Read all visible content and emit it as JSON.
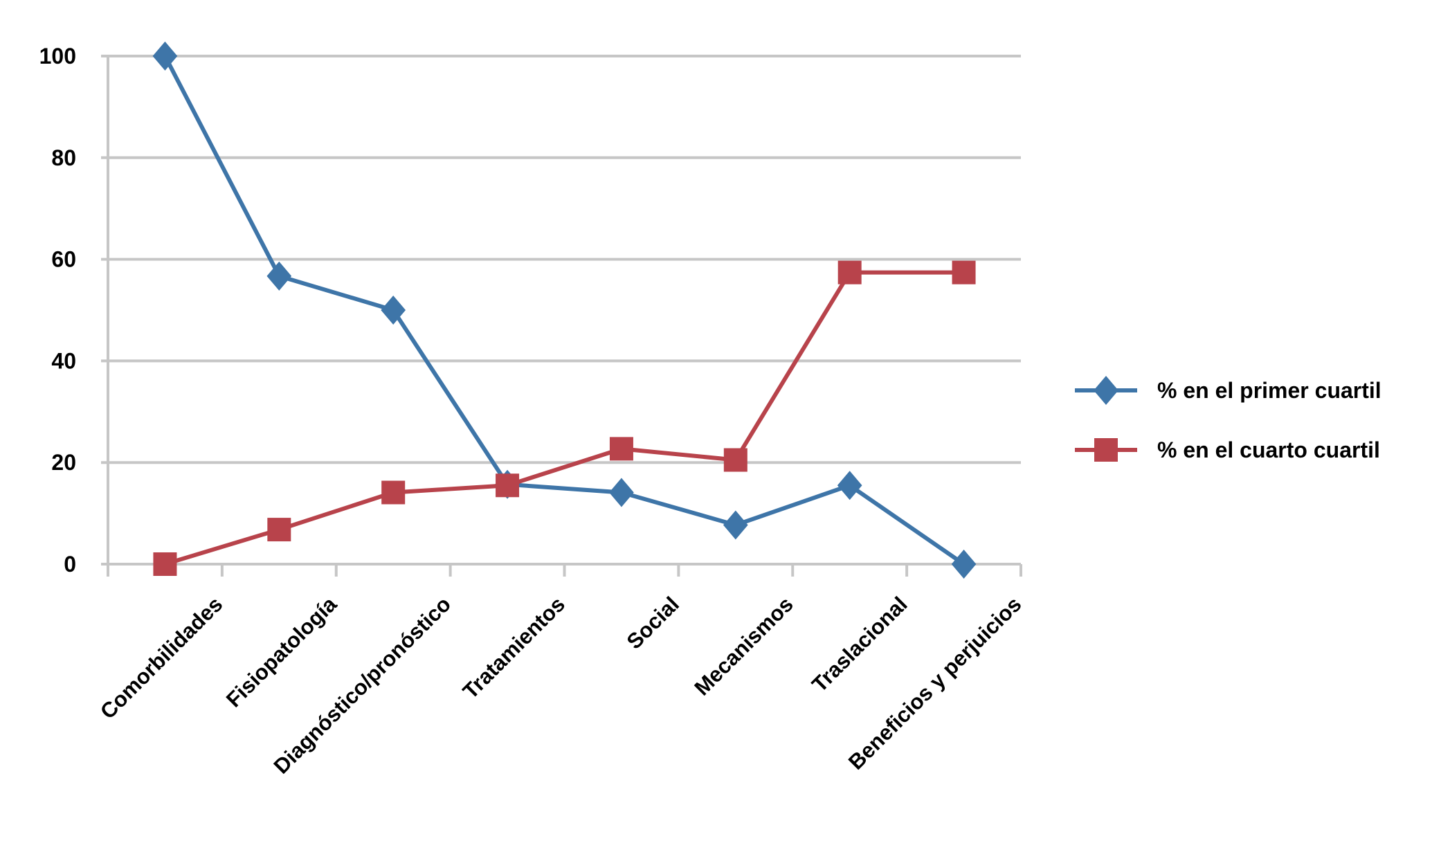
{
  "chart_data": {
    "type": "line",
    "title": "",
    "xlabel": "",
    "ylabel": "",
    "categories": [
      "Comorbilidades",
      "Fisiopatología",
      "Diagnóstico/pronóstico",
      "Tratamientos",
      "Social",
      "Mecanismos",
      "Traslacional",
      "Beneficios y perjuicios"
    ],
    "ylim": [
      0,
      100
    ],
    "yticks": [
      "0",
      "20",
      "40",
      "60",
      "80",
      "100"
    ],
    "grid": true,
    "legend_position": "right",
    "series": [
      {
        "name": "% en el primer cuartil",
        "color": "#3E75A8",
        "marker": "diamond",
        "values": [
          100,
          56.7,
          50,
          15.7,
          14.1,
          7.7,
          15.5,
          0
        ]
      },
      {
        "name": "% en el cuarto cuartil",
        "color": "#B8434B",
        "marker": "square",
        "values": [
          0,
          6.8,
          14.1,
          15.5,
          22.7,
          20.5,
          57.4,
          57.4
        ]
      }
    ]
  }
}
